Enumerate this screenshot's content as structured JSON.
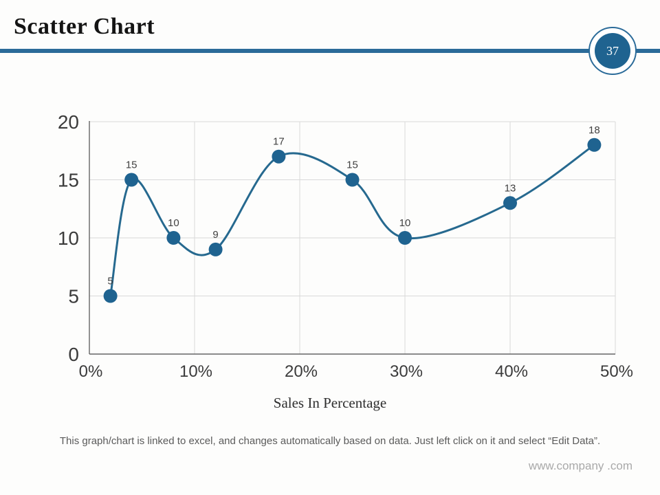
{
  "slide": {
    "title": "Scatter Chart",
    "page_number": "37",
    "footer_note": "This graph/chart is linked to excel, and changes automatically based on data. Just left click on it and select “Edit Data”.",
    "watermark": "www.company .com"
  },
  "colors": {
    "accent": "#2b6b99",
    "series_line": "#26698f",
    "marker": "#1f6390",
    "gridline": "#d9d9d9",
    "axis": "#646464",
    "tick_label": "#3b3b3b",
    "data_label": "#404040"
  },
  "chart_data": {
    "type": "scatter",
    "title": "",
    "xlabel": "Sales In Percentage",
    "ylabel": "",
    "x": [
      2,
      4,
      8,
      12,
      18,
      25,
      30,
      40,
      48
    ],
    "y": [
      5,
      15,
      10,
      9,
      17,
      15,
      10,
      13,
      18
    ],
    "xlim": [
      0,
      50
    ],
    "ylim": [
      0,
      20
    ],
    "xticks": [
      0,
      10,
      20,
      30,
      40,
      50
    ],
    "xtick_labels": [
      "0%",
      "10%",
      "20%",
      "30%",
      "40%",
      "50%"
    ],
    "yticks": [
      0,
      5,
      10,
      15,
      20
    ],
    "ytick_labels": [
      "0",
      "5",
      "10",
      "15",
      "20"
    ],
    "grid": true,
    "line_style": "smooth",
    "data_labels": true,
    "legend": false
  }
}
